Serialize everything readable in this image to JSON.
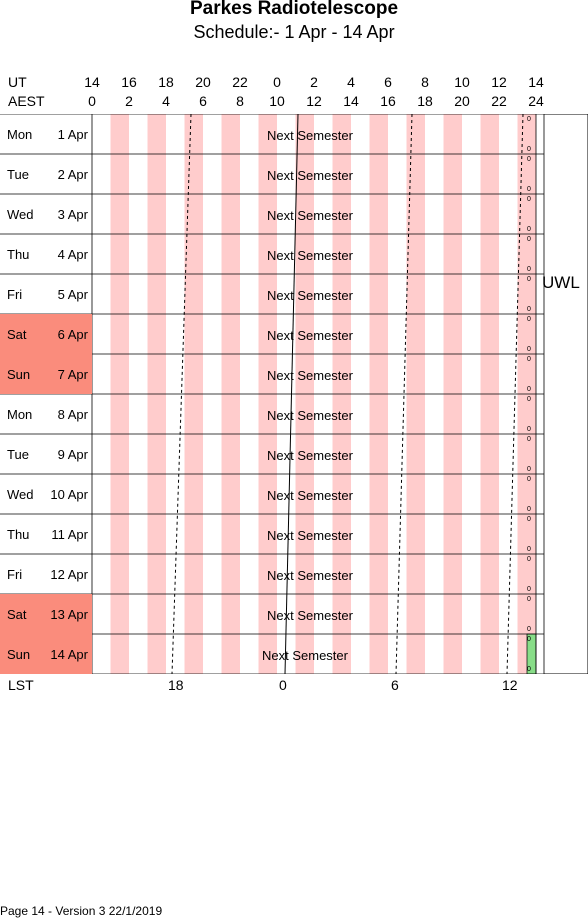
{
  "title": "Parkes Radiotelescope",
  "subtitle": "Schedule:- 1  Apr - 14 Apr",
  "axis": {
    "ut_label": "UT",
    "aest_label": "AEST",
    "lst_label": "LST",
    "ut_ticks": [
      "14",
      "16",
      "18",
      "20",
      "22",
      "0",
      "2",
      "4",
      "6",
      "8",
      "10",
      "12",
      "14"
    ],
    "aest_ticks": [
      "0",
      "2",
      "4",
      "6",
      "8",
      "10",
      "12",
      "14",
      "16",
      "18",
      "20",
      "22",
      "24"
    ],
    "lst_ticks": [
      "18",
      "0",
      "6",
      "12"
    ]
  },
  "days": [
    {
      "name": "Mon",
      "date": "1  Apr",
      "weekend": false,
      "entry": "Next Semester"
    },
    {
      "name": "Tue",
      "date": "2  Apr",
      "weekend": false,
      "entry": "Next Semester"
    },
    {
      "name": "Wed",
      "date": "3  Apr",
      "weekend": false,
      "entry": "Next Semester"
    },
    {
      "name": "Thu",
      "date": "4  Apr",
      "weekend": false,
      "entry": "Next Semester"
    },
    {
      "name": "Fri",
      "date": "5  Apr",
      "weekend": false,
      "entry": "Next Semester"
    },
    {
      "name": "Sat",
      "date": "6  Apr",
      "weekend": true,
      "entry": "Next Semester"
    },
    {
      "name": "Sun",
      "date": "7  Apr",
      "weekend": true,
      "entry": "Next Semester"
    },
    {
      "name": "Mon",
      "date": "8  Apr",
      "weekend": false,
      "entry": "Next Semester"
    },
    {
      "name": "Tue",
      "date": "9  Apr",
      "weekend": false,
      "entry": "Next Semester"
    },
    {
      "name": "Wed",
      "date": "10 Apr",
      "weekend": false,
      "entry": "Next Semester"
    },
    {
      "name": "Thu",
      "date": "11 Apr",
      "weekend": false,
      "entry": "Next Semester"
    },
    {
      "name": "Fri",
      "date": "12 Apr",
      "weekend": false,
      "entry": "Next Semester"
    },
    {
      "name": "Sat",
      "date": "13 Apr",
      "weekend": true,
      "entry": "Next Semester"
    },
    {
      "name": "Sun",
      "date": "14 Apr",
      "weekend": true,
      "entry": "Next Semester"
    }
  ],
  "receiver": "UWL",
  "footer": "Page 14 - Version 3  22/1/2019",
  "colors": {
    "night_band": "#ffcccc",
    "weekend": "#fa8c7c",
    "maintenance": "#88dd88"
  }
}
